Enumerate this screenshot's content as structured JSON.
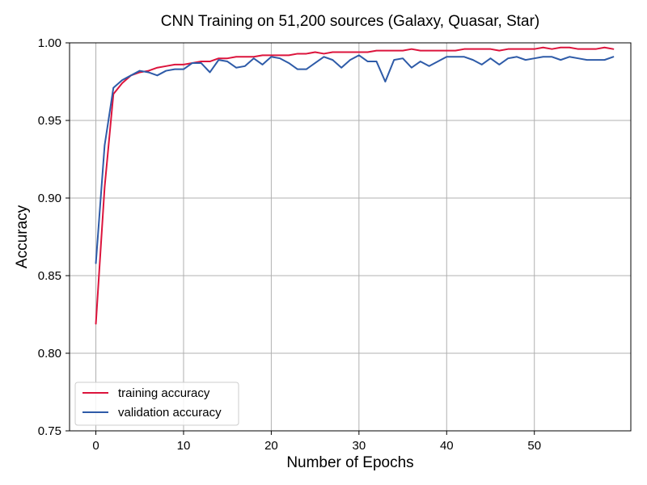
{
  "chart_data": {
    "type": "line",
    "title": "CNN Training on 51,200 sources (Galaxy, Quasar, Star)",
    "xlabel": "Number of Epochs",
    "ylabel": "Accuracy",
    "xlim": [
      -3,
      61
    ],
    "ylim": [
      0.75,
      1.0
    ],
    "grid": true,
    "legend_position": "lower-left",
    "x_ticks": [
      0,
      10,
      20,
      30,
      40,
      50
    ],
    "x_tick_labels": [
      "0",
      "10",
      "20",
      "30",
      "40",
      "50"
    ],
    "y_ticks": [
      0.75,
      0.8,
      0.85,
      0.9,
      0.95,
      1.0
    ],
    "y_tick_labels": [
      "0.75",
      "0.80",
      "0.85",
      "0.90",
      "0.95",
      "1.00"
    ],
    "x": [
      0,
      1,
      2,
      3,
      4,
      5,
      6,
      7,
      8,
      9,
      10,
      11,
      12,
      13,
      14,
      15,
      16,
      17,
      18,
      19,
      20,
      21,
      22,
      23,
      24,
      25,
      26,
      27,
      28,
      29,
      30,
      31,
      32,
      33,
      34,
      35,
      36,
      37,
      38,
      39,
      40,
      41,
      42,
      43,
      44,
      45,
      46,
      47,
      48,
      49,
      50,
      51,
      52,
      53,
      54,
      55,
      56,
      57,
      58,
      59
    ],
    "series": [
      {
        "name": "training accuracy",
        "color": "#dc143c",
        "values": [
          0.819,
          0.907,
          0.967,
          0.974,
          0.979,
          0.981,
          0.982,
          0.984,
          0.985,
          0.986,
          0.986,
          0.987,
          0.988,
          0.988,
          0.99,
          0.99,
          0.991,
          0.991,
          0.991,
          0.992,
          0.992,
          0.992,
          0.992,
          0.993,
          0.993,
          0.994,
          0.993,
          0.994,
          0.994,
          0.994,
          0.994,
          0.994,
          0.995,
          0.995,
          0.995,
          0.995,
          0.996,
          0.995,
          0.995,
          0.995,
          0.995,
          0.995,
          0.996,
          0.996,
          0.996,
          0.996,
          0.995,
          0.996,
          0.996,
          0.996,
          0.996,
          0.997,
          0.996,
          0.997,
          0.997,
          0.996,
          0.996,
          0.996,
          0.997,
          0.996
        ]
      },
      {
        "name": "validation accuracy",
        "color": "#2e5ba8",
        "values": [
          0.858,
          0.934,
          0.971,
          0.976,
          0.979,
          0.982,
          0.981,
          0.979,
          0.982,
          0.983,
          0.983,
          0.987,
          0.987,
          0.981,
          0.989,
          0.988,
          0.984,
          0.985,
          0.99,
          0.986,
          0.991,
          0.99,
          0.987,
          0.983,
          0.983,
          0.987,
          0.991,
          0.989,
          0.984,
          0.989,
          0.992,
          0.988,
          0.988,
          0.975,
          0.989,
          0.99,
          0.984,
          0.988,
          0.985,
          0.988,
          0.991,
          0.991,
          0.991,
          0.989,
          0.986,
          0.99,
          0.986,
          0.99,
          0.991,
          0.989,
          0.99,
          0.991,
          0.991,
          0.989,
          0.991,
          0.99,
          0.989,
          0.989,
          0.989,
          0.991
        ]
      }
    ]
  }
}
